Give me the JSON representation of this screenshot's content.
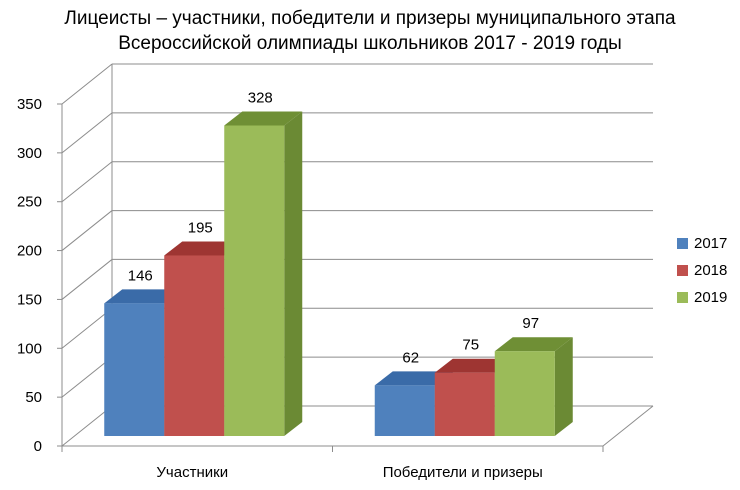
{
  "chart_data": {
    "type": "bar",
    "title_lines": [
      "Лицеисты –  участники, победители и призеры муниципального этапа",
      "Всероссийской олимпиады школьников 2017 -  2019 годы"
    ],
    "categories": [
      "Участники",
      "Победители и призеры"
    ],
    "series": [
      {
        "name": "2017",
        "values": [
          146,
          62
        ],
        "color": "#4F81BD",
        "top": "#3A6BA8",
        "side": "#2E5A8E"
      },
      {
        "name": "2018",
        "values": [
          195,
          75
        ],
        "color": "#C0504D",
        "top": "#9E3532",
        "side": "#8B2F2C"
      },
      {
        "name": "2019",
        "values": [
          328,
          97
        ],
        "color": "#9BBB59",
        "top": "#6F8F35",
        "side": "#6B8A34"
      }
    ],
    "ylim": [
      0,
      350
    ],
    "yticks": [
      "0",
      "50",
      "100",
      "150",
      "200",
      "250",
      "300",
      "350"
    ],
    "grid": true,
    "legend_position": "right"
  }
}
